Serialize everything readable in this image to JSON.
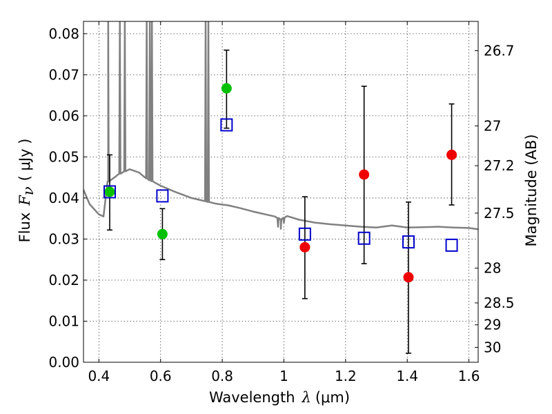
{
  "chart_data": {
    "type": "scatter",
    "title": "",
    "xlabel": "Wavelength  λ (μm)",
    "xlabel_parts": {
      "text": "Wavelength",
      "symbol": "λ",
      "unit": "(μm)"
    },
    "ylabel": "Flux  Fν  ( μJy )",
    "ylabel_parts": {
      "text": "Flux",
      "symbol": "F",
      "subscript": "ν",
      "unit": "( μJy )"
    },
    "ylabel_right": "Magnitude (AB)",
    "xlim": [
      0.35,
      1.63
    ],
    "ylim": [
      0.0,
      0.083
    ],
    "grid": true,
    "x_ticks": [
      0.4,
      0.6,
      0.8,
      1.0,
      1.2,
      1.4,
      1.6
    ],
    "x_tick_labels": [
      "0.4",
      "0.6",
      "0.8",
      "1",
      "1.2",
      "1.4",
      "1.6"
    ],
    "y_ticks": [
      0.0,
      0.01,
      0.02,
      0.03,
      0.04,
      0.05,
      0.06,
      0.07,
      0.08
    ],
    "y_tick_labels": [
      "0.00",
      "0.01",
      "0.02",
      "0.03",
      "0.04",
      "0.05",
      "0.06",
      "0.07",
      "0.08"
    ],
    "right_ticks": [
      {
        "label": "26.7",
        "mag": 26.7
      },
      {
        "label": "27",
        "mag": 27.0
      },
      {
        "label": "27.2",
        "mag": 27.2
      },
      {
        "label": "27.5",
        "mag": 27.5
      },
      {
        "label": "28",
        "mag": 28.0
      },
      {
        "label": "28.5",
        "mag": 28.5
      },
      {
        "label": "29",
        "mag": 29.0
      },
      {
        "label": "30",
        "mag": 30.0
      }
    ],
    "series": [
      {
        "marker": "circle",
        "color": "#00c000",
        "points": [
          {
            "x": 0.435,
            "y": 0.0415,
            "err_lo": 0.0322,
            "err_hi": 0.0505
          },
          {
            "x": 0.606,
            "y": 0.0312,
            "err_lo": 0.025,
            "err_hi": 0.0374
          },
          {
            "x": 0.814,
            "y": 0.0667,
            "err_lo": 0.057,
            "err_hi": 0.076
          }
        ]
      },
      {
        "marker": "circle",
        "color": "#ee0000",
        "points": [
          {
            "x": 1.068,
            "y": 0.028,
            "err_lo": 0.0155,
            "err_hi": 0.0403
          },
          {
            "x": 1.26,
            "y": 0.0457,
            "err_lo": 0.024,
            "err_hi": 0.0672
          },
          {
            "x": 1.404,
            "y": 0.0207,
            "err_lo": 0.0022,
            "err_hi": 0.039
          },
          {
            "x": 1.544,
            "y": 0.0505,
            "err_lo": 0.0383,
            "err_hi": 0.0629
          }
        ]
      },
      {
        "marker": "square",
        "color": "#0000cc",
        "points": [
          {
            "x": 0.435,
            "y": 0.0415
          },
          {
            "x": 0.606,
            "y": 0.0405
          },
          {
            "x": 0.814,
            "y": 0.0578
          },
          {
            "x": 1.068,
            "y": 0.0312
          },
          {
            "x": 1.26,
            "y": 0.0302
          },
          {
            "x": 1.404,
            "y": 0.0293
          },
          {
            "x": 1.544,
            "y": 0.0285
          }
        ]
      }
    ],
    "model_spectrum": {
      "color": "#808080",
      "continuum": [
        [
          0.35,
          0.042
        ],
        [
          0.37,
          0.0385
        ],
        [
          0.4,
          0.036
        ],
        [
          0.415,
          0.0355
        ],
        [
          0.425,
          0.042
        ],
        [
          0.43,
          0.044
        ],
        [
          0.45,
          0.045
        ],
        [
          0.47,
          0.046
        ],
        [
          0.5,
          0.047
        ],
        [
          0.53,
          0.0462
        ],
        [
          0.56,
          0.0445
        ],
        [
          0.58,
          0.0438
        ],
        [
          0.6,
          0.043
        ],
        [
          0.65,
          0.0414
        ],
        [
          0.7,
          0.04
        ],
        [
          0.74,
          0.0393
        ],
        [
          0.78,
          0.0386
        ],
        [
          0.82,
          0.0382
        ],
        [
          0.86,
          0.0375
        ],
        [
          0.9,
          0.0367
        ],
        [
          0.94,
          0.036
        ],
        [
          0.97,
          0.0355
        ],
        [
          0.99,
          0.0348
        ],
        [
          1.01,
          0.0356
        ],
        [
          1.05,
          0.0347
        ],
        [
          1.1,
          0.034
        ],
        [
          1.15,
          0.0336
        ],
        [
          1.2,
          0.0333
        ],
        [
          1.25,
          0.033
        ],
        [
          1.3,
          0.0328
        ],
        [
          1.35,
          0.0333
        ],
        [
          1.4,
          0.0328
        ],
        [
          1.45,
          0.0329
        ],
        [
          1.5,
          0.033
        ],
        [
          1.55,
          0.0328
        ],
        [
          1.6,
          0.0327
        ],
        [
          1.63,
          0.0324
        ]
      ],
      "emission_lines": [
        {
          "x": 0.43,
          "peak": 0.083
        },
        {
          "x": 0.468,
          "peak": 0.083
        },
        {
          "x": 0.484,
          "peak": 0.083
        },
        {
          "x": 0.555,
          "peak": 0.083
        },
        {
          "x": 0.565,
          "peak": 0.083
        },
        {
          "x": 0.572,
          "peak": 0.083
        },
        {
          "x": 0.746,
          "peak": 0.083
        },
        {
          "x": 0.755,
          "peak": 0.083
        }
      ],
      "absorption_lines": [
        {
          "x": 0.981,
          "trough": 0.033
        },
        {
          "x": 0.99,
          "trough": 0.0325
        },
        {
          "x": 1.0,
          "trough": 0.034
        }
      ]
    }
  }
}
